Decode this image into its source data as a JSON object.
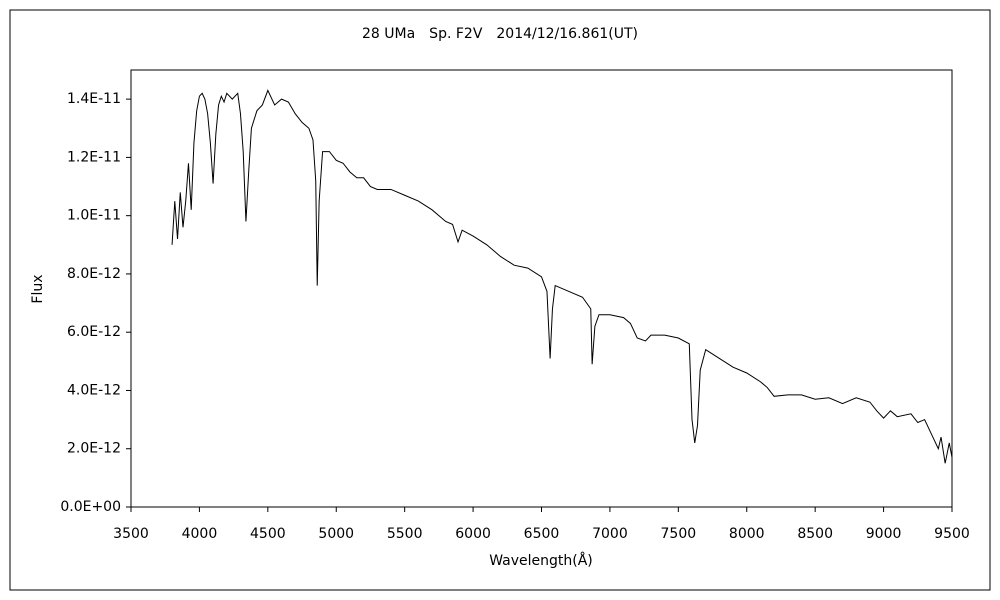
{
  "chart_data": {
    "type": "line",
    "title": "28 UMa　Sp. F2V　2014/12/16.861(UT)",
    "x_label": "Wavelength(Å)",
    "y_label": "Flux",
    "xlim": [
      3500,
      9500
    ],
    "xticks": [
      3500,
      4000,
      4500,
      5000,
      5500,
      6000,
      6500,
      7000,
      7500,
      8000,
      8500,
      9000,
      9500
    ],
    "ylim": [
      0,
      1.5e-11
    ],
    "yticks": [
      {
        "value": 0,
        "label": "0.0E+00"
      },
      {
        "value": 2e-12,
        "label": "2.0E-12"
      },
      {
        "value": 4e-12,
        "label": "4.0E-12"
      },
      {
        "value": 6e-12,
        "label": "6.0E-12"
      },
      {
        "value": 8e-12,
        "label": "8.0E-12"
      },
      {
        "value": 1e-11,
        "label": "1.0E-11"
      },
      {
        "value": 1.2e-11,
        "label": "1.2E-11"
      },
      {
        "value": 1.4e-11,
        "label": "1.4E-11"
      }
    ],
    "grid": false,
    "series": [
      {
        "color": "#000000",
        "x": [
          3800,
          3820,
          3840,
          3860,
          3880,
          3900,
          3920,
          3940,
          3960,
          3980,
          4000,
          4020,
          4040,
          4060,
          4080,
          4100,
          4120,
          4140,
          4160,
          4180,
          4200,
          4240,
          4280,
          4300,
          4320,
          4340,
          4360,
          4380,
          4420,
          4460,
          4500,
          4550,
          4600,
          4650,
          4700,
          4750,
          4800,
          4830,
          4850,
          4861,
          4875,
          4900,
          4950,
          5000,
          5050,
          5100,
          5150,
          5200,
          5250,
          5300,
          5400,
          5500,
          5600,
          5700,
          5800,
          5850,
          5890,
          5920,
          6000,
          6100,
          6200,
          6300,
          6400,
          6500,
          6540,
          6563,
          6580,
          6600,
          6700,
          6800,
          6860,
          6870,
          6890,
          6920,
          7000,
          7100,
          7150,
          7180,
          7200,
          7260,
          7300,
          7400,
          7500,
          7580,
          7600,
          7620,
          7640,
          7660,
          7700,
          7800,
          7900,
          8000,
          8100,
          8150,
          8200,
          8300,
          8400,
          8500,
          8600,
          8700,
          8800,
          8900,
          8950,
          9000,
          9050,
          9100,
          9200,
          9250,
          9300,
          9350,
          9400,
          9420,
          9450,
          9480,
          9500
        ],
        "values": [
          9e-12,
          1.05e-11,
          9.2e-12,
          1.08e-11,
          9.6e-12,
          1.05e-11,
          1.18e-11,
          1.02e-11,
          1.25e-11,
          1.36e-11,
          1.41e-11,
          1.42e-11,
          1.4e-11,
          1.35e-11,
          1.25e-11,
          1.11e-11,
          1.28e-11,
          1.38e-11,
          1.41e-11,
          1.39e-11,
          1.42e-11,
          1.4e-11,
          1.42e-11,
          1.35e-11,
          1.22e-11,
          9.8e-12,
          1.15e-11,
          1.3e-11,
          1.36e-11,
          1.38e-11,
          1.43e-11,
          1.38e-11,
          1.4e-11,
          1.39e-11,
          1.35e-11,
          1.32e-11,
          1.3e-11,
          1.26e-11,
          1.12e-11,
          7.6e-12,
          1.05e-11,
          1.22e-11,
          1.22e-11,
          1.19e-11,
          1.18e-11,
          1.15e-11,
          1.13e-11,
          1.13e-11,
          1.1e-11,
          1.09e-11,
          1.09e-11,
          1.07e-11,
          1.05e-11,
          1.02e-11,
          9.8e-12,
          9.7e-12,
          9.1e-12,
          9.5e-12,
          9.3e-12,
          9e-12,
          8.6e-12,
          8.3e-12,
          8.2e-12,
          7.9e-12,
          7.4e-12,
          5.1e-12,
          6.8e-12,
          7.6e-12,
          7.4e-12,
          7.2e-12,
          6.8e-12,
          4.9e-12,
          6.2e-12,
          6.6e-12,
          6.6e-12,
          6.5e-12,
          6.3e-12,
          6e-12,
          5.8e-12,
          5.7e-12,
          5.9e-12,
          5.9e-12,
          5.8e-12,
          5.6e-12,
          3e-12,
          2.2e-12,
          2.8e-12,
          4.7e-12,
          5.4e-12,
          5.1e-12,
          4.8e-12,
          4.6e-12,
          4.3e-12,
          4.1e-12,
          3.8e-12,
          3.85e-12,
          3.85e-12,
          3.7e-12,
          3.75e-12,
          3.55e-12,
          3.75e-12,
          3.6e-12,
          3.3e-12,
          3.05e-12,
          3.3e-12,
          3.1e-12,
          3.2e-12,
          2.9e-12,
          3e-12,
          2.5e-12,
          2e-12,
          2.4e-12,
          1.5e-12,
          2.2e-12,
          1.7e-12
        ]
      }
    ]
  }
}
